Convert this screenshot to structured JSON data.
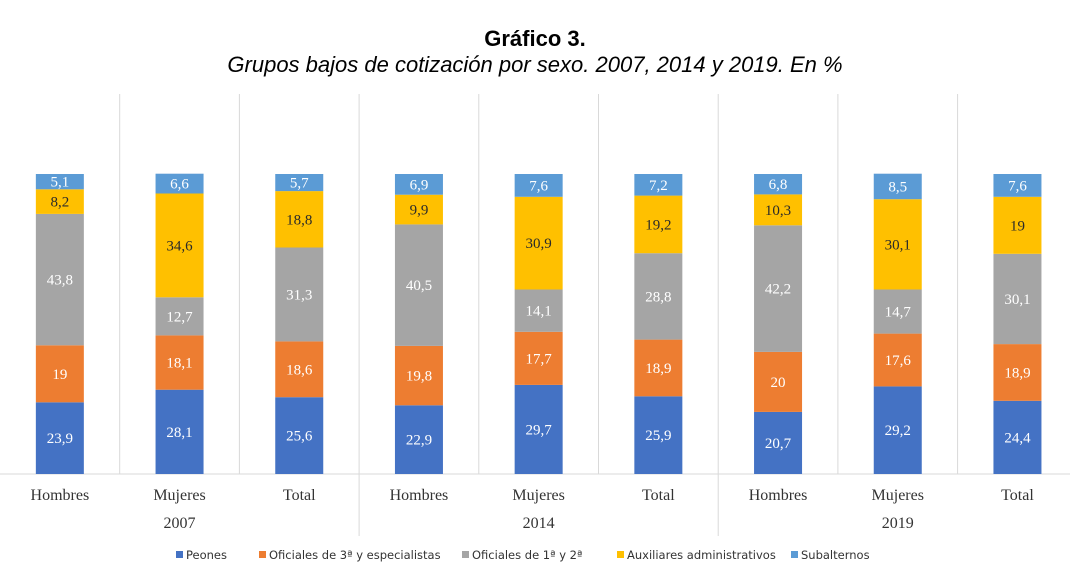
{
  "chart_data": {
    "type": "bar",
    "stacked": true,
    "title": "Gráfico 3.",
    "subtitle": "Grupos bajos de cotización por sexo. 2007, 2014 y 2019. En %",
    "groups": [
      "2007",
      "2014",
      "2019"
    ],
    "categories": [
      "Hombres",
      "Mujeres",
      "Total",
      "Hombres",
      "Mujeres",
      "Total",
      "Hombres",
      "Mujeres",
      "Total"
    ],
    "ylim": [
      0,
      100
    ],
    "grid": true,
    "legend_position": "bottom",
    "series": [
      {
        "name": "Peones",
        "color": "#4472C4",
        "values": [
          23.9,
          28.1,
          25.6,
          22.9,
          29.7,
          25.9,
          20.7,
          29.2,
          24.4
        ],
        "labels": [
          "23,9",
          "28,1",
          "25,6",
          "22,9",
          "29,7",
          "25,9",
          "20,7",
          "29,2",
          "24,4"
        ]
      },
      {
        "name": "Oficiales de 3ª y especialistas",
        "color": "#ED7D31",
        "values": [
          19,
          18.1,
          18.6,
          19.8,
          17.7,
          18.9,
          20,
          17.6,
          18.9
        ],
        "labels": [
          "19",
          "18,1",
          "18,6",
          "19,8",
          "17,7",
          "18,9",
          "20",
          "17,6",
          "18,9"
        ]
      },
      {
        "name": "Oficiales de 1ª y 2ª",
        "color": "#A5A5A5",
        "values": [
          43.8,
          12.7,
          31.3,
          40.5,
          14.1,
          28.8,
          42.2,
          14.7,
          30.1
        ],
        "labels": [
          "43,8",
          "12,7",
          "31,3",
          "40,5",
          "14,1",
          "28,8",
          "42,2",
          "14,7",
          "30,1"
        ]
      },
      {
        "name": "Auxiliares administrativos",
        "color": "#FFC000",
        "values": [
          8.2,
          34.6,
          18.8,
          9.9,
          30.9,
          19.2,
          10.3,
          30.1,
          19
        ],
        "labels": [
          "8,2",
          "34,6",
          "18,8",
          "9,9",
          "30,9",
          "19,2",
          "10,3",
          "30,1",
          "19"
        ]
      },
      {
        "name": "Subalternos",
        "color": "#5B9BD5",
        "values": [
          5.1,
          6.6,
          5.7,
          6.9,
          7.6,
          7.2,
          6.8,
          8.5,
          7.6
        ],
        "labels": [
          "5,1",
          "6,6",
          "5,7",
          "6,9",
          "7,6",
          "7,2",
          "6,8",
          "8,5",
          "7,6"
        ]
      }
    ]
  }
}
